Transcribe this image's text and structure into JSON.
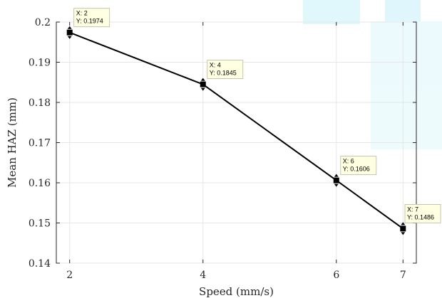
{
  "chart_data": {
    "type": "line",
    "x": [
      2,
      4,
      6,
      7
    ],
    "y": [
      0.1974,
      0.1845,
      0.1606,
      0.1486
    ],
    "xlabel": "Speed (mm/s)",
    "ylabel": "Mean HAZ (mm)",
    "xlim": [
      1.8,
      7.2
    ],
    "ylim": [
      0.14,
      0.2
    ],
    "xticks": [
      2,
      4,
      6,
      7
    ],
    "yticks": [
      0.14,
      0.15,
      0.16,
      0.17,
      0.18,
      0.19,
      0.2
    ],
    "ytick_labels": [
      "0.14",
      "0.15",
      "0.16",
      "0.17",
      "0.18",
      "0.19",
      "0.2"
    ],
    "grid": true,
    "line_color": "#000000",
    "marker": "square",
    "datatips": [
      {
        "x_text": "X: 2",
        "y_text": "Y: 0.1974"
      },
      {
        "x_text": "X: 4",
        "y_text": "Y: 0.1845"
      },
      {
        "x_text": "X: 6",
        "y_text": "Y: 0.1606"
      },
      {
        "x_text": "X: 7",
        "y_text": "Y: 0.1486"
      }
    ],
    "datatip_bg": "#ffffe1",
    "grid_color": "#e6e6e6",
    "axis_color": "#262626"
  }
}
